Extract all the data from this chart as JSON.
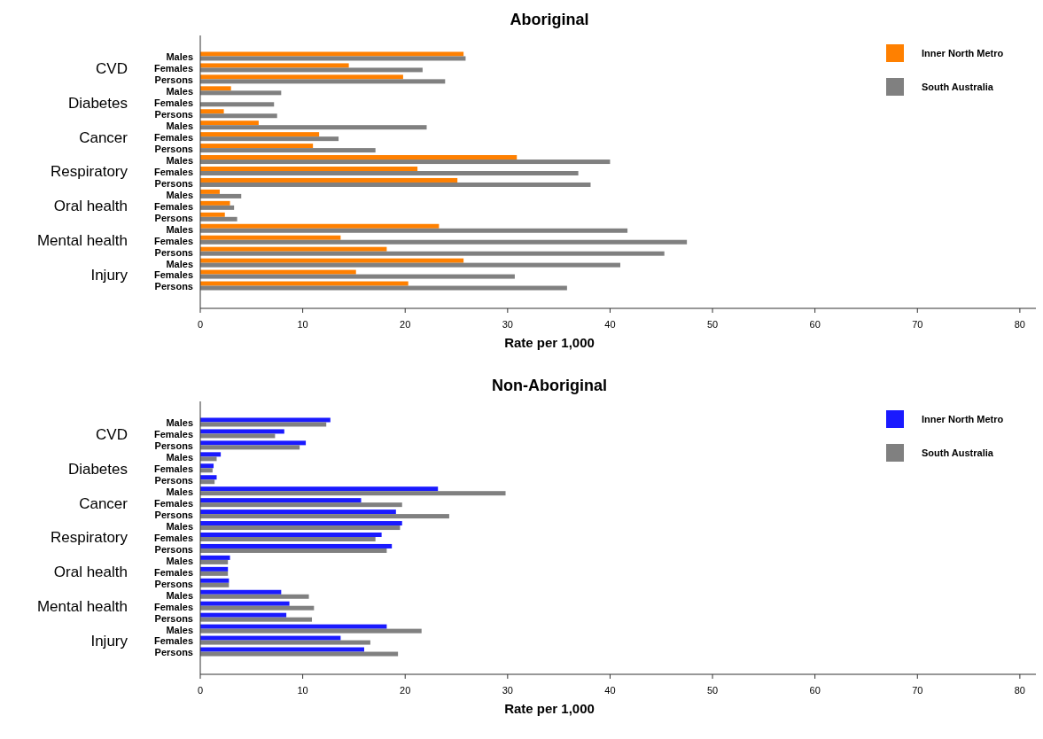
{
  "chart_data": [
    {
      "type": "bar",
      "orientation": "horizontal",
      "title": "Aboriginal",
      "xlabel": "Rate per 1,000",
      "categories": [
        "Males",
        "Females",
        "Persons",
        "Males",
        "Females",
        "Persons",
        "Males",
        "Females",
        "Persons",
        "Males",
        "Females",
        "Persons",
        "Males",
        "Females",
        "Persons",
        "Males",
        "Females",
        "Persons",
        "Males",
        "Females",
        "Persons"
      ],
      "annotations": [
        "CVD",
        "Diabetes",
        "Cancer",
        "Respiratory",
        "Oral health",
        "Mental health",
        "Injury"
      ],
      "series": [
        {
          "name": "Inner North Metro",
          "color": "#ff8000",
          "values": [
            25.7,
            14.5,
            19.8,
            3.0,
            null,
            2.3,
            5.7,
            11.6,
            11.0,
            30.9,
            21.2,
            25.1,
            1.9,
            2.9,
            2.4,
            23.3,
            13.7,
            18.2,
            25.7,
            15.2,
            20.3
          ]
        },
        {
          "name": "South Australia",
          "color": "#808080",
          "values": [
            25.9,
            21.7,
            23.9,
            7.9,
            7.2,
            7.5,
            22.1,
            13.5,
            17.1,
            40.0,
            36.9,
            38.1,
            4.0,
            3.3,
            3.6,
            41.7,
            47.5,
            45.3,
            41.0,
            30.7,
            35.8
          ]
        }
      ],
      "xlim": [
        0,
        82
      ],
      "xticks": [
        0,
        10,
        20,
        30,
        40,
        50,
        60,
        70,
        80
      ],
      "grid": false,
      "legend": "top right"
    },
    {
      "type": "bar",
      "orientation": "horizontal",
      "title": "Non-Aboriginal",
      "xlabel": "Rate per 1,000",
      "categories": [
        "Males",
        "Females",
        "Persons",
        "Males",
        "Females",
        "Persons",
        "Males",
        "Females",
        "Persons",
        "Males",
        "Females",
        "Persons",
        "Males",
        "Females",
        "Persons",
        "Males",
        "Females",
        "Persons",
        "Males",
        "Females",
        "Persons"
      ],
      "annotations": [
        "CVD",
        "Diabetes",
        "Cancer",
        "Respiratory",
        "Oral health",
        "Mental health",
        "Injury"
      ],
      "series": [
        {
          "name": "Inner North Metro",
          "color": "#1a1aff",
          "values": [
            12.7,
            8.2,
            10.3,
            2.0,
            1.3,
            1.6,
            23.2,
            15.7,
            19.1,
            19.7,
            17.7,
            18.7,
            2.9,
            2.7,
            2.8,
            7.9,
            8.7,
            8.4,
            18.2,
            13.7,
            16.0
          ]
        },
        {
          "name": "South Australia",
          "color": "#808080",
          "values": [
            12.3,
            7.3,
            9.7,
            1.6,
            1.2,
            1.4,
            29.8,
            19.7,
            24.3,
            19.5,
            17.1,
            18.2,
            2.7,
            2.7,
            2.8,
            10.6,
            11.1,
            10.9,
            21.6,
            16.6,
            19.3
          ]
        }
      ],
      "xlim": [
        0,
        82
      ],
      "xticks": [
        0,
        10,
        20,
        30,
        40,
        50,
        60,
        70,
        80
      ],
      "grid": false,
      "legend": "top right"
    }
  ]
}
